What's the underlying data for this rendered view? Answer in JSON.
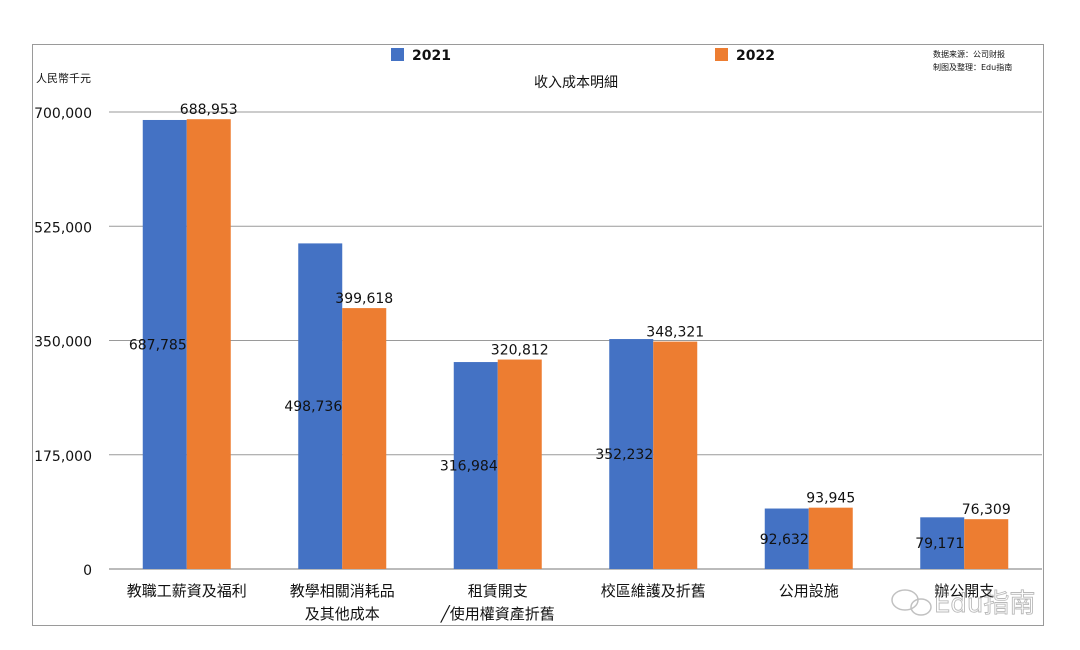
{
  "chart_data": {
    "type": "bar",
    "title": "收入成本明細",
    "ylabel": "人民幣千元",
    "ylim": [
      0,
      700000
    ],
    "yticks": [
      "0",
      "175,000",
      "350,000",
      "525,000",
      "700,000"
    ],
    "grid": true,
    "legend_position": "top",
    "categories": [
      [
        "教職工薪資及福利"
      ],
      [
        "教學相關消耗品",
        "及其他成本"
      ],
      [
        "租賃開支",
        "╱使用權資產折舊"
      ],
      [
        "校區維護及折舊"
      ],
      [
        "公用設施"
      ],
      [
        "辦公開支"
      ]
    ],
    "series": [
      {
        "name": "2021",
        "color": "#4472c4",
        "values": [
          687785,
          498736,
          316984,
          352232,
          92632,
          79171
        ],
        "labels": [
          "687,785",
          "498,736",
          "316,984",
          "352,232",
          "92,632",
          "79,171"
        ]
      },
      {
        "name": "2022",
        "color": "#ed7d31",
        "values": [
          688953,
          399618,
          320812,
          348321,
          93945,
          76309
        ],
        "labels": [
          "688,953",
          "399,618",
          "320,812",
          "348,321",
          "93,945",
          "76,309"
        ]
      }
    ],
    "source_note": [
      "数据来源：公司财报",
      "制图及整理：Edu指南"
    ],
    "watermark": "Edu指南"
  }
}
